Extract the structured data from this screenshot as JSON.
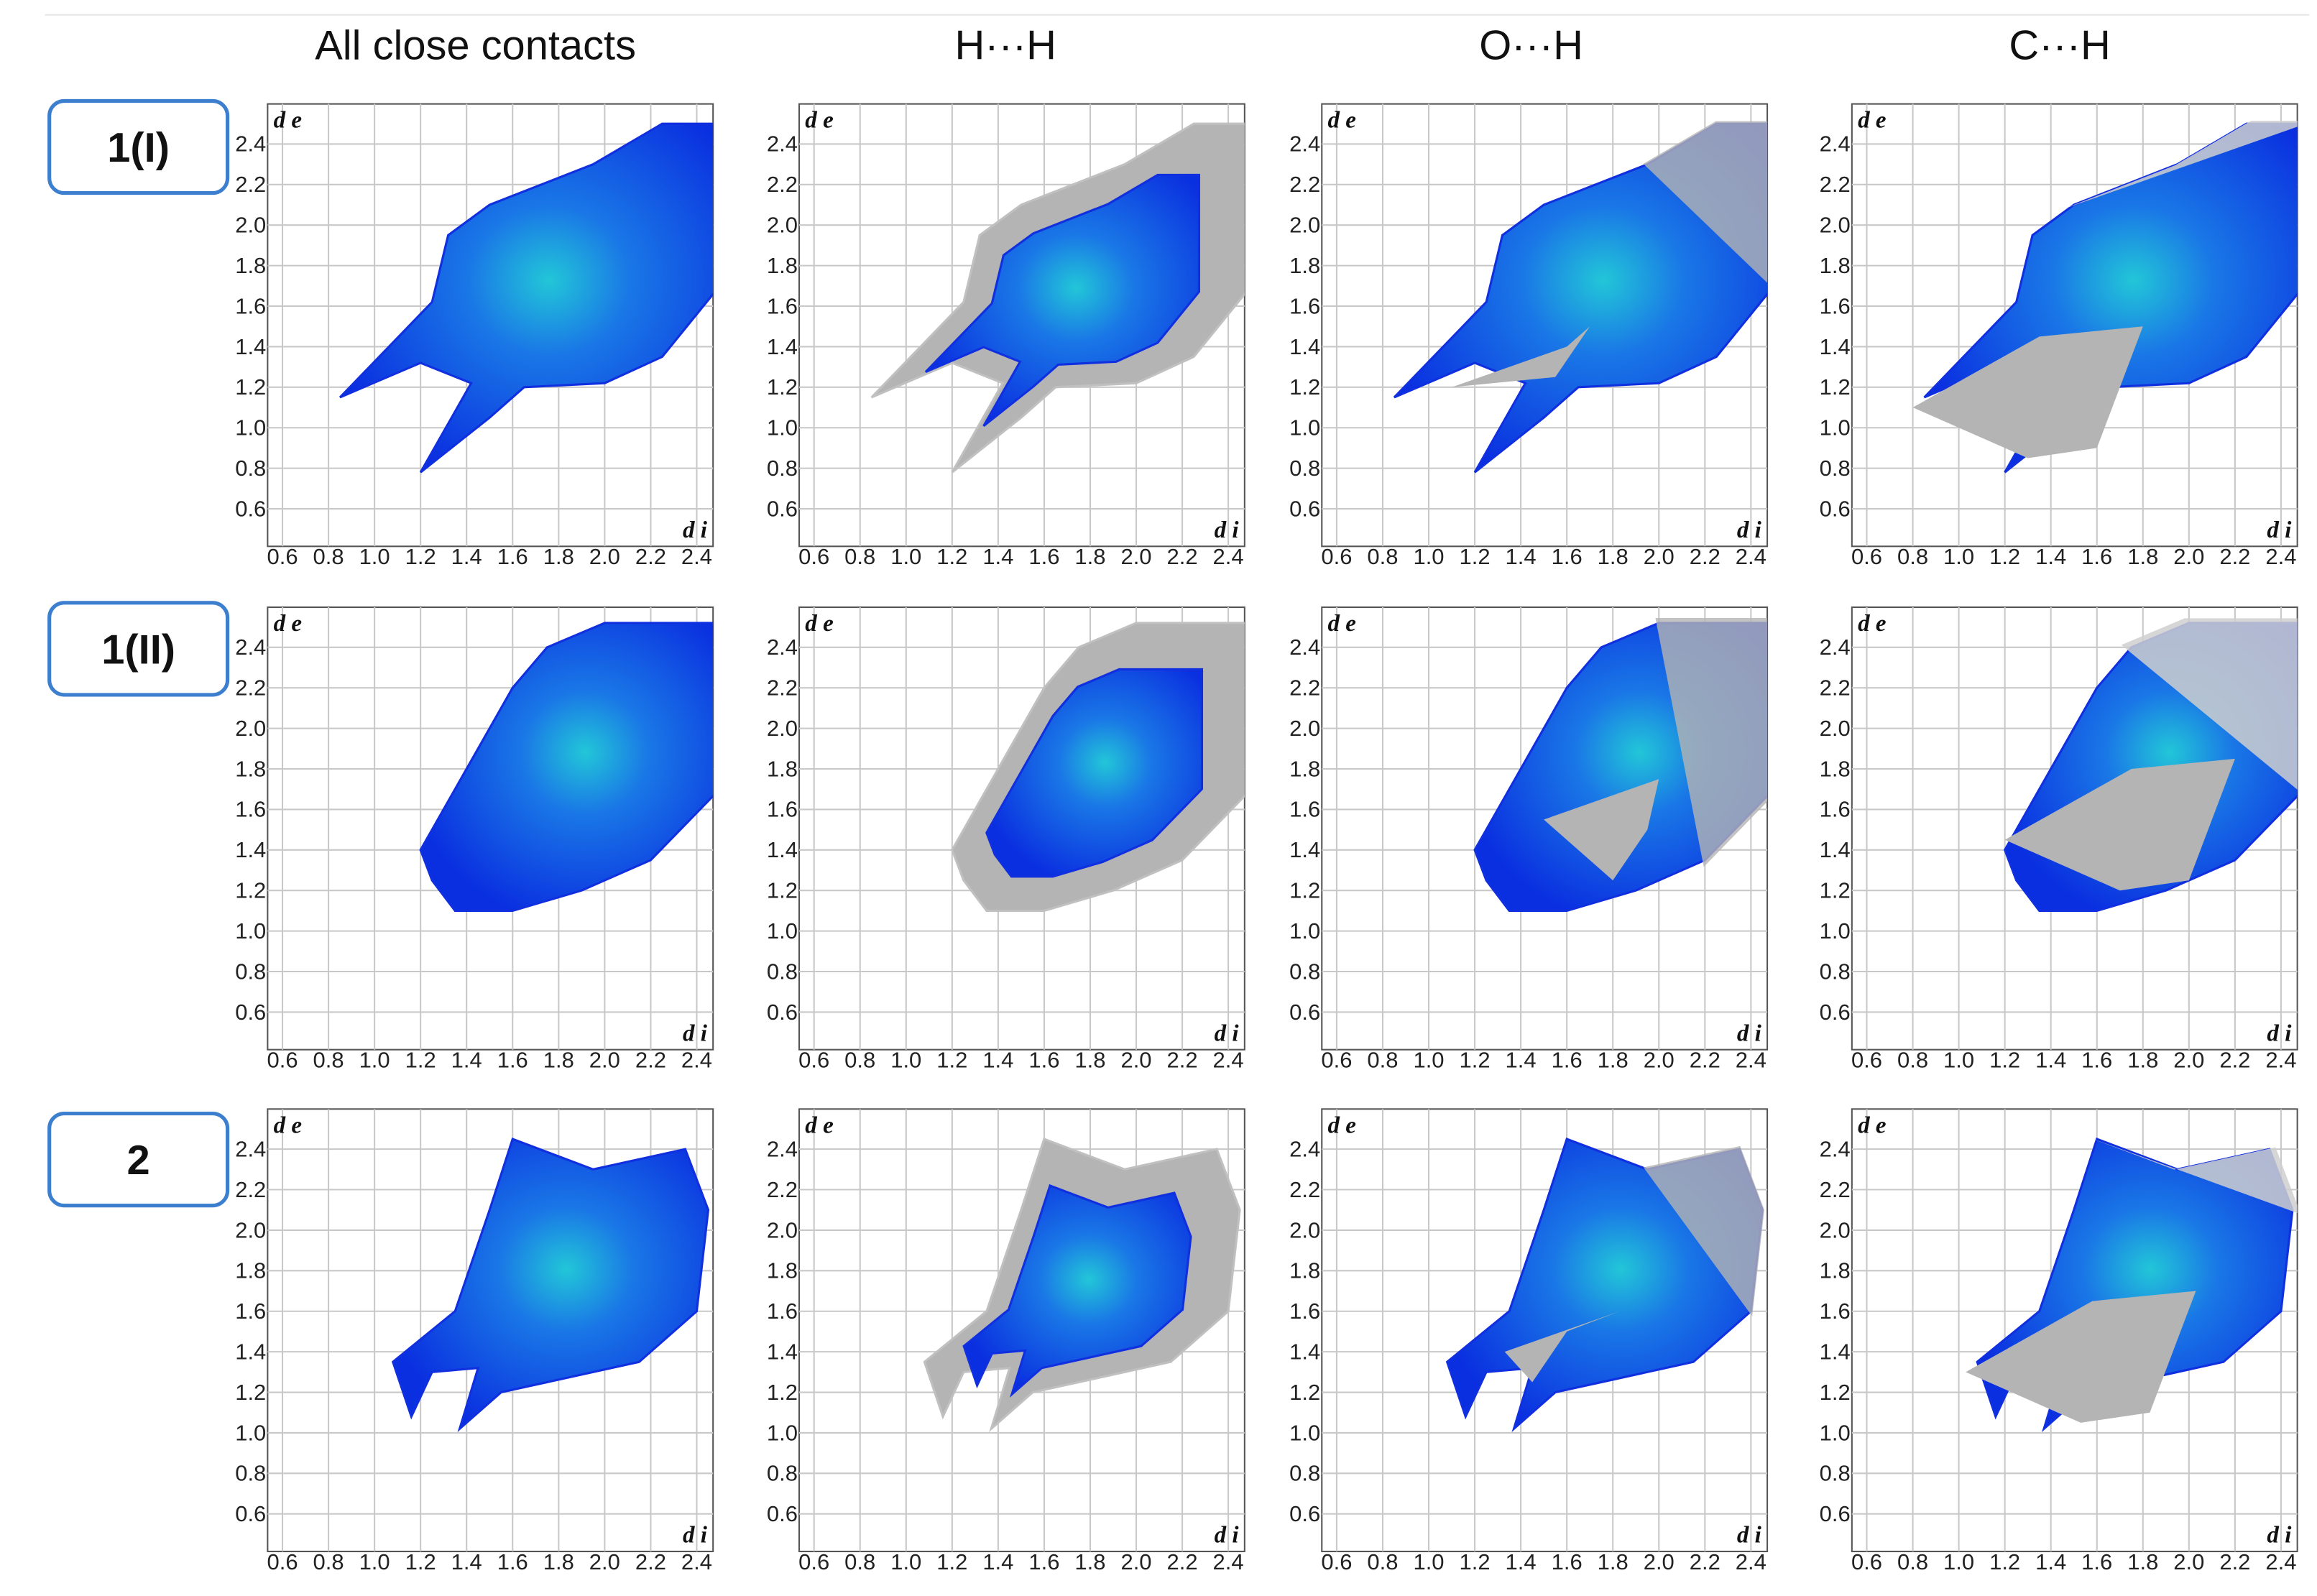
{
  "columns": [
    "All close contacts",
    "H···H",
    "O···H",
    "C···H"
  ],
  "rows": [
    "1(I)",
    "1(II)",
    "2"
  ],
  "axes": {
    "y_label": "d e",
    "x_label": "d i",
    "yticks": [
      "2.4",
      "2.2",
      "2.0",
      "1.8",
      "1.6",
      "1.4",
      "1.2",
      "1.0",
      "0.8",
      "0.6"
    ],
    "xticks": [
      "0.6",
      "0.8",
      "1.0",
      "1.2",
      "1.4",
      "1.6",
      "1.8",
      "2.0",
      "2.2",
      "2.4"
    ]
  }
}
